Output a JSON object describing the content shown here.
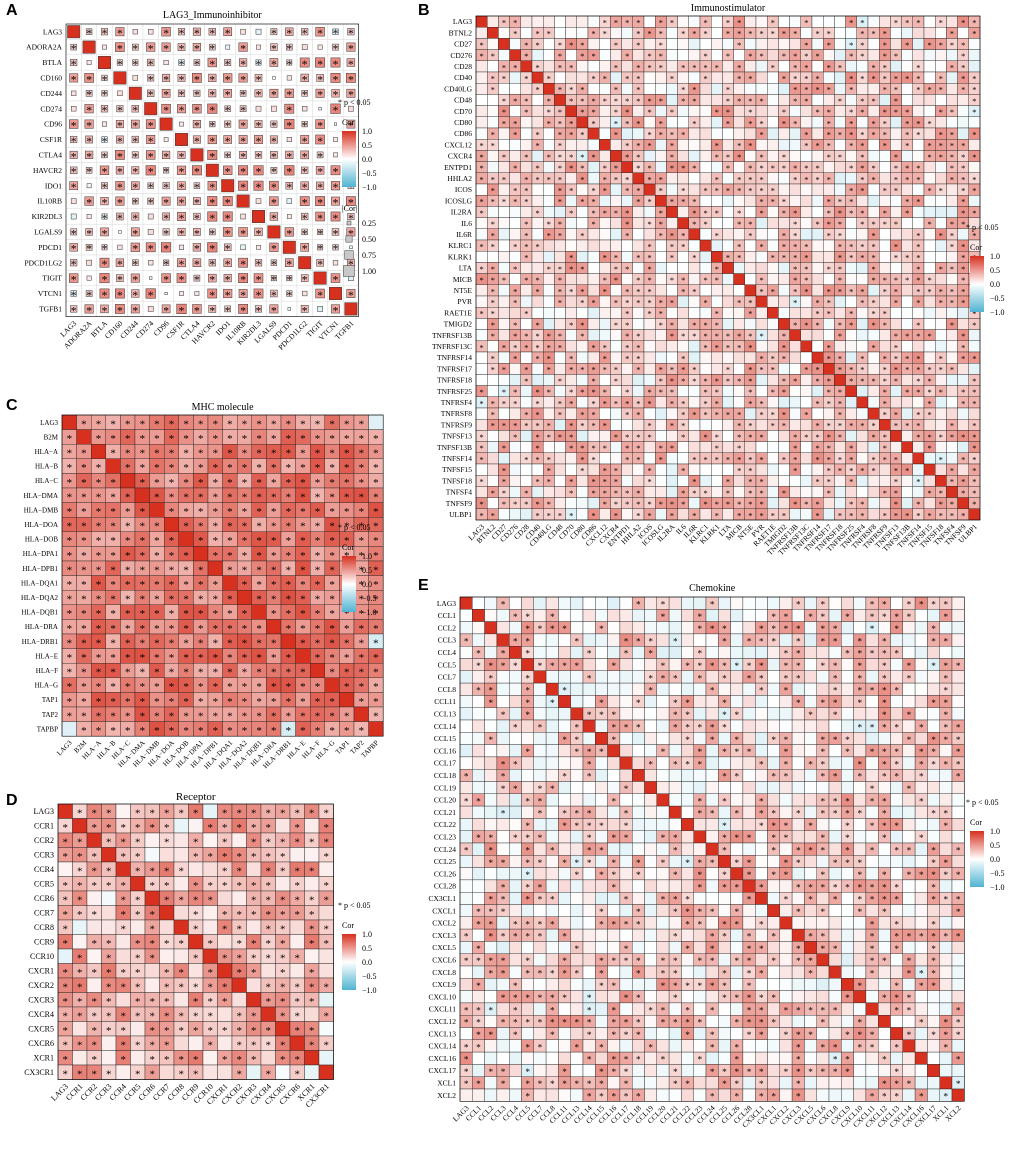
{
  "chart_data": [
    {
      "panel": "A",
      "type": "heatmap",
      "style": "circle-size",
      "title": "LAG3_Immunoinhibitor",
      "labels": [
        "LAG3",
        "ADORA2A",
        "BTLA",
        "CD160",
        "CD244",
        "CD274",
        "CD96",
        "CSF1R",
        "CTLA4",
        "HAVCR2",
        "IDO1",
        "IL10RB",
        "KIR2DL3",
        "LGALS9",
        "PDCD1",
        "PDCD1LG2",
        "TIGIT",
        "VTCN1",
        "TGFB1"
      ],
      "legend": {
        "sig_note": "* p < 0.05",
        "cor_title": "Cor",
        "cor_ticks": [
          "1.0",
          "0.5",
          "0.0",
          "−0.5",
          "−1.0"
        ],
        "size_title": "|Cor|",
        "size_ticks": [
          "0.25",
          "0.50",
          "0.75",
          "1.00"
        ]
      },
      "colors": {
        "positive": "#d7301f",
        "negative": "#4fb3d1",
        "zero": "#ffffff"
      },
      "cor_range": [
        -1,
        1
      ]
    },
    {
      "panel": "B",
      "type": "heatmap",
      "style": "tile",
      "title": "Immunostimulator",
      "labels": [
        "LAG3",
        "BTNL2",
        "CD27",
        "CD276",
        "CD28",
        "CD40",
        "CD40LG",
        "CD48",
        "CD70",
        "CD80",
        "CD86",
        "CXCL12",
        "CXCR4",
        "ENTPD1",
        "HHLA2",
        "ICOS",
        "ICOSLG",
        "IL2RA",
        "IL6",
        "IL6R",
        "KLRC1",
        "KLRK1",
        "LTA",
        "MICB",
        "NT5E",
        "PVR",
        "RAET1E",
        "TMIGD2",
        "TNFRSF13B",
        "TNFRSF13C",
        "TNFRSF14",
        "TNFRSF17",
        "TNFRSF18",
        "TNFRSF25",
        "TNFRSF4",
        "TNFRSF8",
        "TNFRSF9",
        "TNFSF13",
        "TNFSF13B",
        "TNFSF14",
        "TNFSF15",
        "TNFSF18",
        "TNFSF4",
        "TNFSF9",
        "ULBP1"
      ],
      "legend": {
        "sig_note": "* p < 0.05",
        "cor_title": "Cor",
        "cor_ticks": [
          "1.0",
          "0.5",
          "0.0",
          "−0.5",
          "−1.0"
        ]
      },
      "colors": {
        "positive": "#d7301f",
        "negative": "#4fb3d1",
        "zero": "#ffffff"
      },
      "cor_range": [
        -1,
        1
      ]
    },
    {
      "panel": "C",
      "type": "heatmap",
      "style": "tile",
      "title": "MHC molecule",
      "labels": [
        "LAG3",
        "B2M",
        "HLA−A",
        "HLA−B",
        "HLA−C",
        "HLA−DMA",
        "HLA−DMB",
        "HLA−DOA",
        "HLA−DOB",
        "HLA−DPA1",
        "HLA−DPB1",
        "HLA−DQA1",
        "HLA−DQA2",
        "HLA−DQB1",
        "HLA−DRA",
        "HLA−DRB1",
        "HLA−E",
        "HLA−F",
        "HLA−G",
        "TAP1",
        "TAP2",
        "TAPBP"
      ],
      "legend": {
        "sig_note": "* p < 0.05",
        "cor_title": "Cor",
        "cor_ticks": [
          "1.0",
          "0.5",
          "0.0",
          "−0.5",
          "−1.0"
        ]
      },
      "colors": {
        "positive": "#d7301f",
        "negative": "#4fb3d1",
        "zero": "#ffffff"
      },
      "cor_range": [
        -1,
        1
      ]
    },
    {
      "panel": "D",
      "type": "heatmap",
      "style": "tile",
      "title": "Receptor",
      "labels": [
        "LAG3",
        "CCR1",
        "CCR2",
        "CCR3",
        "CCR4",
        "CCR5",
        "CCR6",
        "CCR7",
        "CCR8",
        "CCR9",
        "CCR10",
        "CXCR1",
        "CXCR2",
        "CXCR3",
        "CXCR4",
        "CXCR5",
        "CXCR6",
        "XCR1",
        "CX3CR1"
      ],
      "legend": {
        "sig_note": "* p < 0.05",
        "cor_title": "Cor",
        "cor_ticks": [
          "1.0",
          "0.5",
          "0.0",
          "−0.5",
          "−1.0"
        ]
      },
      "colors": {
        "positive": "#d7301f",
        "negative": "#4fb3d1",
        "zero": "#ffffff"
      },
      "cor_range": [
        -1,
        1
      ]
    },
    {
      "panel": "E",
      "type": "heatmap",
      "style": "tile",
      "title": "Chemokine",
      "labels": [
        "LAG3",
        "CCL1",
        "CCL2",
        "CCL3",
        "CCL4",
        "CCL5",
        "CCL7",
        "CCL8",
        "CCL11",
        "CCL13",
        "CCL14",
        "CCL15",
        "CCL16",
        "CCL17",
        "CCL18",
        "CCL19",
        "CCL20",
        "CCL21",
        "CCL22",
        "CCL23",
        "CCL24",
        "CCL25",
        "CCL26",
        "CCL28",
        "CX3CL1",
        "CXCL1",
        "CXCL2",
        "CXCL3",
        "CXCL5",
        "CXCL6",
        "CXCL8",
        "CXCL9",
        "CXCL10",
        "CXCL11",
        "CXCL12",
        "CXCL13",
        "CXCL14",
        "CXCL16",
        "CXCL17",
        "XCL1",
        "XCL2"
      ],
      "legend": {
        "sig_note": "* p < 0.05",
        "cor_title": "Cor",
        "cor_ticks": [
          "1.0",
          "0.5",
          "0.0",
          "−0.5",
          "−1.0"
        ]
      },
      "colors": {
        "positive": "#d7301f",
        "negative": "#4fb3d1",
        "zero": "#ffffff"
      },
      "cor_range": [
        -1,
        1
      ]
    }
  ]
}
